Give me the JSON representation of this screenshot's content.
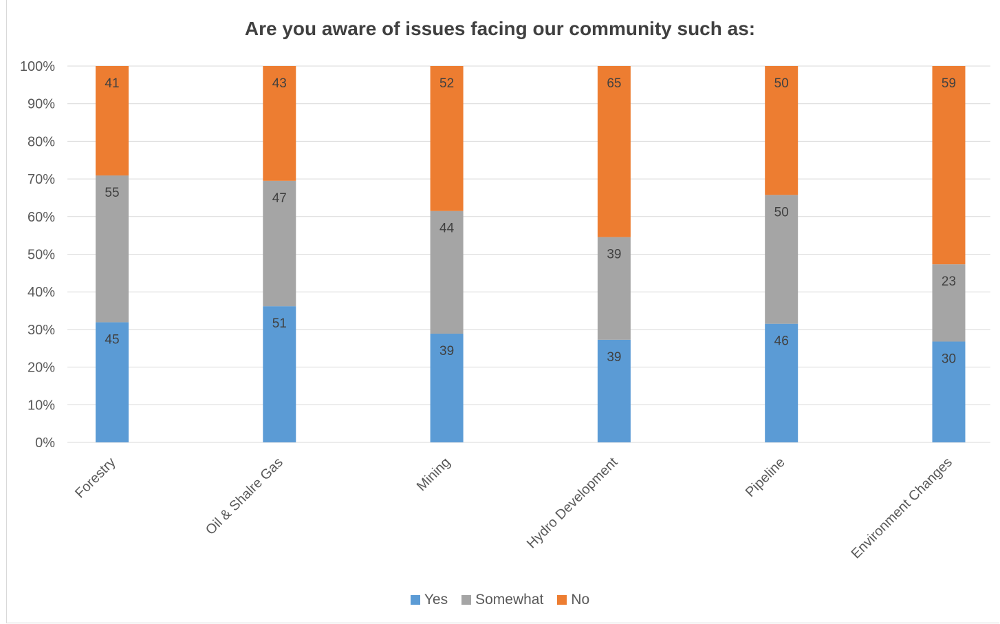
{
  "chart_data": {
    "type": "bar",
    "stacked": "100%",
    "title": "Are you aware of issues facing our community such as:",
    "categories": [
      "Forestry",
      "Oil & Shalre Gas",
      "Mining",
      "Hydro Development",
      "Pipeline",
      "Environment Changes"
    ],
    "series": [
      {
        "name": "Yes",
        "color": "#5b9bd5",
        "values": [
          45,
          51,
          39,
          39,
          46,
          30
        ]
      },
      {
        "name": "Somewhat",
        "color": "#a5a5a5",
        "values": [
          55,
          47,
          44,
          39,
          50,
          23
        ]
      },
      {
        "name": "No",
        "color": "#ed7d31",
        "values": [
          41,
          43,
          52,
          65,
          50,
          59
        ]
      }
    ],
    "y_ticks": [
      "0%",
      "10%",
      "20%",
      "30%",
      "40%",
      "50%",
      "60%",
      "70%",
      "80%",
      "90%",
      "100%"
    ],
    "ylim": [
      0,
      100
    ],
    "grid": true,
    "legend_position": "bottom"
  }
}
